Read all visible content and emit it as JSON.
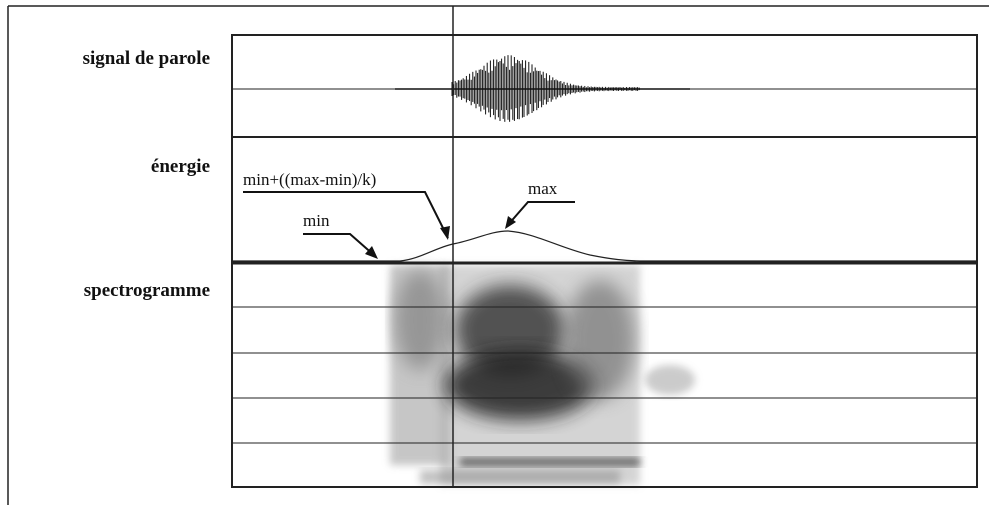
{
  "panels": {
    "signal": "signal de parole",
    "energy": "énergie",
    "spectrogram": "spectrogramme"
  },
  "annotations": {
    "threshold": "min+((max-min)/k)",
    "max": "max",
    "min": "min"
  }
}
